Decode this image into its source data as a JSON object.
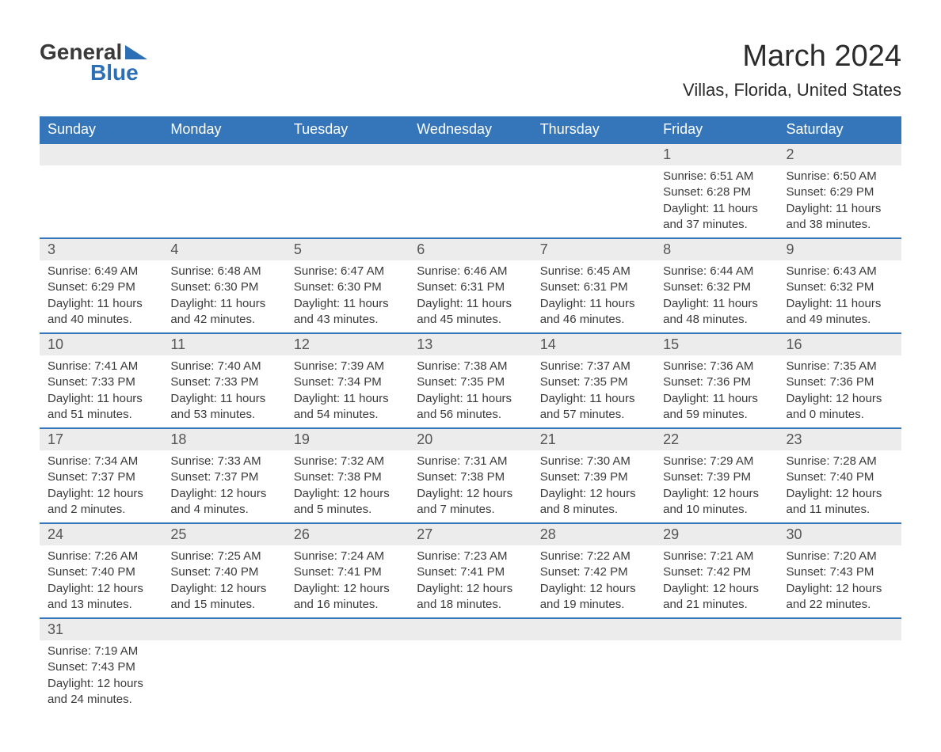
{
  "logo": {
    "text1": "General",
    "text2": "Blue"
  },
  "title": "March 2024",
  "subtitle": "Villas, Florida, United States",
  "colors": {
    "header_bg": "#3576bb",
    "header_text": "#ffffff",
    "daynum_bg": "#ececec",
    "border": "#3576bb",
    "body_text": "#3a3a3a",
    "logo_blue": "#2d6fb5"
  },
  "weekdays": [
    "Sunday",
    "Monday",
    "Tuesday",
    "Wednesday",
    "Thursday",
    "Friday",
    "Saturday"
  ],
  "weeks": [
    [
      null,
      null,
      null,
      null,
      null,
      {
        "n": "1",
        "sr": "6:51 AM",
        "ss": "6:28 PM",
        "dl": "11 hours and 37 minutes."
      },
      {
        "n": "2",
        "sr": "6:50 AM",
        "ss": "6:29 PM",
        "dl": "11 hours and 38 minutes."
      }
    ],
    [
      {
        "n": "3",
        "sr": "6:49 AM",
        "ss": "6:29 PM",
        "dl": "11 hours and 40 minutes."
      },
      {
        "n": "4",
        "sr": "6:48 AM",
        "ss": "6:30 PM",
        "dl": "11 hours and 42 minutes."
      },
      {
        "n": "5",
        "sr": "6:47 AM",
        "ss": "6:30 PM",
        "dl": "11 hours and 43 minutes."
      },
      {
        "n": "6",
        "sr": "6:46 AM",
        "ss": "6:31 PM",
        "dl": "11 hours and 45 minutes."
      },
      {
        "n": "7",
        "sr": "6:45 AM",
        "ss": "6:31 PM",
        "dl": "11 hours and 46 minutes."
      },
      {
        "n": "8",
        "sr": "6:44 AM",
        "ss": "6:32 PM",
        "dl": "11 hours and 48 minutes."
      },
      {
        "n": "9",
        "sr": "6:43 AM",
        "ss": "6:32 PM",
        "dl": "11 hours and 49 minutes."
      }
    ],
    [
      {
        "n": "10",
        "sr": "7:41 AM",
        "ss": "7:33 PM",
        "dl": "11 hours and 51 minutes."
      },
      {
        "n": "11",
        "sr": "7:40 AM",
        "ss": "7:33 PM",
        "dl": "11 hours and 53 minutes."
      },
      {
        "n": "12",
        "sr": "7:39 AM",
        "ss": "7:34 PM",
        "dl": "11 hours and 54 minutes."
      },
      {
        "n": "13",
        "sr": "7:38 AM",
        "ss": "7:35 PM",
        "dl": "11 hours and 56 minutes."
      },
      {
        "n": "14",
        "sr": "7:37 AM",
        "ss": "7:35 PM",
        "dl": "11 hours and 57 minutes."
      },
      {
        "n": "15",
        "sr": "7:36 AM",
        "ss": "7:36 PM",
        "dl": "11 hours and 59 minutes."
      },
      {
        "n": "16",
        "sr": "7:35 AM",
        "ss": "7:36 PM",
        "dl": "12 hours and 0 minutes."
      }
    ],
    [
      {
        "n": "17",
        "sr": "7:34 AM",
        "ss": "7:37 PM",
        "dl": "12 hours and 2 minutes."
      },
      {
        "n": "18",
        "sr": "7:33 AM",
        "ss": "7:37 PM",
        "dl": "12 hours and 4 minutes."
      },
      {
        "n": "19",
        "sr": "7:32 AM",
        "ss": "7:38 PM",
        "dl": "12 hours and 5 minutes."
      },
      {
        "n": "20",
        "sr": "7:31 AM",
        "ss": "7:38 PM",
        "dl": "12 hours and 7 minutes."
      },
      {
        "n": "21",
        "sr": "7:30 AM",
        "ss": "7:39 PM",
        "dl": "12 hours and 8 minutes."
      },
      {
        "n": "22",
        "sr": "7:29 AM",
        "ss": "7:39 PM",
        "dl": "12 hours and 10 minutes."
      },
      {
        "n": "23",
        "sr": "7:28 AM",
        "ss": "7:40 PM",
        "dl": "12 hours and 11 minutes."
      }
    ],
    [
      {
        "n": "24",
        "sr": "7:26 AM",
        "ss": "7:40 PM",
        "dl": "12 hours and 13 minutes."
      },
      {
        "n": "25",
        "sr": "7:25 AM",
        "ss": "7:40 PM",
        "dl": "12 hours and 15 minutes."
      },
      {
        "n": "26",
        "sr": "7:24 AM",
        "ss": "7:41 PM",
        "dl": "12 hours and 16 minutes."
      },
      {
        "n": "27",
        "sr": "7:23 AM",
        "ss": "7:41 PM",
        "dl": "12 hours and 18 minutes."
      },
      {
        "n": "28",
        "sr": "7:22 AM",
        "ss": "7:42 PM",
        "dl": "12 hours and 19 minutes."
      },
      {
        "n": "29",
        "sr": "7:21 AM",
        "ss": "7:42 PM",
        "dl": "12 hours and 21 minutes."
      },
      {
        "n": "30",
        "sr": "7:20 AM",
        "ss": "7:43 PM",
        "dl": "12 hours and 22 minutes."
      }
    ],
    [
      {
        "n": "31",
        "sr": "7:19 AM",
        "ss": "7:43 PM",
        "dl": "12 hours and 24 minutes."
      },
      null,
      null,
      null,
      null,
      null,
      null
    ]
  ],
  "labels": {
    "sunrise": "Sunrise:",
    "sunset": "Sunset:",
    "daylight": "Daylight:"
  }
}
